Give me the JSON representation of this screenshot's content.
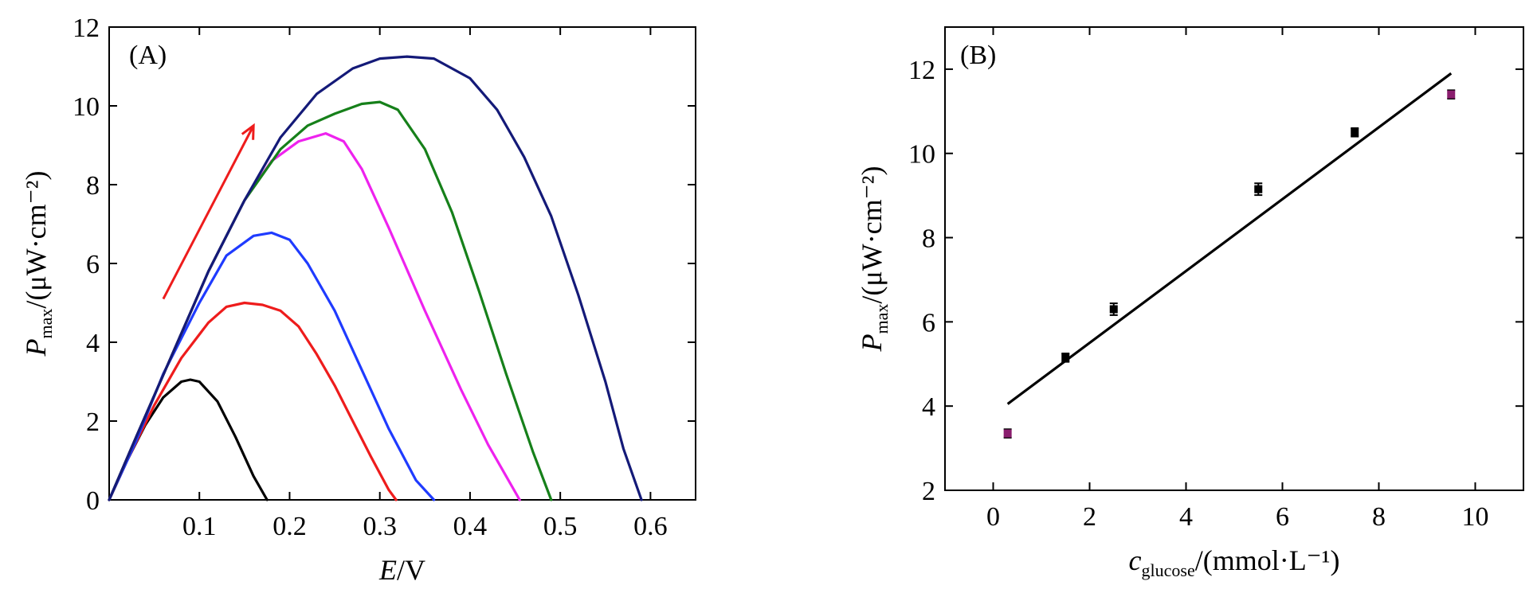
{
  "chart_data": [
    {
      "panel_label": "(A)",
      "type": "line",
      "xlabel": {
        "main": "E",
        "rest": "/V"
      },
      "ylabel": {
        "main": "P",
        "sub": "max",
        "rest": "/(μW·cm⁻²)"
      },
      "xlim": [
        0,
        0.65
      ],
      "ylim": [
        0,
        12
      ],
      "xticks": [
        0.1,
        0.2,
        0.3,
        0.4,
        0.5,
        0.6
      ],
      "xtick_labels": [
        "0.1",
        "0.2",
        "0.3",
        "0.4",
        "0.5",
        "0.6"
      ],
      "yticks": [
        0,
        2,
        4,
        6,
        8,
        10,
        12
      ],
      "ytick_labels": [
        "0",
        "2",
        "4",
        "6",
        "8",
        "10",
        "12"
      ],
      "grid": false,
      "arrow": {
        "from": [
          0.06,
          5.1
        ],
        "to": [
          0.16,
          9.5
        ],
        "color": "#ee1c1c"
      },
      "series": [
        {
          "color": "#000000",
          "x": [
            0,
            0.02,
            0.04,
            0.06,
            0.08,
            0.09,
            0.1,
            0.12,
            0.14,
            0.16,
            0.175
          ],
          "y": [
            0,
            1.0,
            1.9,
            2.6,
            3.0,
            3.05,
            3.0,
            2.5,
            1.6,
            0.6,
            0
          ]
        },
        {
          "color": "#ee1c1c",
          "x": [
            0,
            0.02,
            0.05,
            0.08,
            0.11,
            0.13,
            0.15,
            0.17,
            0.19,
            0.21,
            0.23,
            0.25,
            0.27,
            0.29,
            0.31,
            0.318
          ],
          "y": [
            0,
            1.0,
            2.4,
            3.6,
            4.5,
            4.9,
            5.0,
            4.95,
            4.8,
            4.4,
            3.7,
            2.9,
            2.0,
            1.1,
            0.25,
            0
          ]
        },
        {
          "color": "#1f3bff",
          "x": [
            0,
            0.03,
            0.06,
            0.1,
            0.13,
            0.16,
            0.18,
            0.2,
            0.22,
            0.25,
            0.28,
            0.31,
            0.34,
            0.36
          ],
          "y": [
            0,
            1.5,
            3.2,
            5.0,
            6.2,
            6.7,
            6.78,
            6.6,
            6.0,
            4.8,
            3.3,
            1.8,
            0.5,
            0
          ]
        },
        {
          "color": "#ee22ee",
          "x": [
            0,
            0.03,
            0.07,
            0.11,
            0.15,
            0.18,
            0.21,
            0.24,
            0.26,
            0.28,
            0.31,
            0.35,
            0.39,
            0.42,
            0.455
          ],
          "y": [
            0,
            1.6,
            3.7,
            5.8,
            7.6,
            8.6,
            9.1,
            9.3,
            9.1,
            8.4,
            6.9,
            4.8,
            2.8,
            1.4,
            0
          ]
        },
        {
          "color": "#16801a",
          "x": [
            0,
            0.03,
            0.07,
            0.11,
            0.15,
            0.19,
            0.22,
            0.25,
            0.28,
            0.3,
            0.32,
            0.35,
            0.38,
            0.41,
            0.44,
            0.47,
            0.49
          ],
          "y": [
            0,
            1.6,
            3.7,
            5.8,
            7.6,
            8.9,
            9.5,
            9.8,
            10.05,
            10.1,
            9.9,
            8.9,
            7.3,
            5.3,
            3.2,
            1.2,
            0
          ]
        },
        {
          "color": "#141a78",
          "x": [
            0,
            0.03,
            0.07,
            0.11,
            0.15,
            0.19,
            0.23,
            0.27,
            0.3,
            0.33,
            0.36,
            0.4,
            0.43,
            0.46,
            0.49,
            0.52,
            0.55,
            0.57,
            0.59
          ],
          "y": [
            0,
            1.6,
            3.7,
            5.8,
            7.6,
            9.2,
            10.3,
            10.95,
            11.2,
            11.25,
            11.2,
            10.7,
            9.9,
            8.7,
            7.2,
            5.2,
            3.0,
            1.3,
            0
          ]
        }
      ]
    },
    {
      "panel_label": "(B)",
      "type": "scatter",
      "xlabel": {
        "main": "c",
        "sub": "glucose",
        "rest": "/(mmol·L⁻¹)"
      },
      "ylabel": {
        "main": "P",
        "sub": "max",
        "rest": "/(μW·cm⁻²)"
      },
      "xlim": [
        -1,
        11
      ],
      "ylim": [
        2,
        13
      ],
      "xticks": [
        0,
        2,
        4,
        6,
        8,
        10
      ],
      "xtick_labels": [
        "0",
        "2",
        "4",
        "6",
        "8",
        "10"
      ],
      "yticks": [
        2,
        4,
        6,
        8,
        10,
        12
      ],
      "ytick_labels": [
        "2",
        "4",
        "6",
        "8",
        "10",
        "12"
      ],
      "grid": false,
      "points": [
        {
          "x": 0.3,
          "y": 3.35,
          "err": 0.1,
          "color": "#8a1e6e"
        },
        {
          "x": 1.5,
          "y": 5.15,
          "err": 0.1,
          "color": "#000000"
        },
        {
          "x": 2.5,
          "y": 6.3,
          "err": 0.14,
          "color": "#000000"
        },
        {
          "x": 5.5,
          "y": 9.15,
          "err": 0.14,
          "color": "#000000"
        },
        {
          "x": 7.5,
          "y": 10.5,
          "err": 0.1,
          "color": "#000000"
        },
        {
          "x": 9.5,
          "y": 11.4,
          "err": 0.1,
          "color": "#8a1e6e"
        }
      ],
      "fit_line": {
        "x": [
          0.3,
          9.5
        ],
        "y": [
          4.05,
          11.9
        ]
      }
    }
  ]
}
